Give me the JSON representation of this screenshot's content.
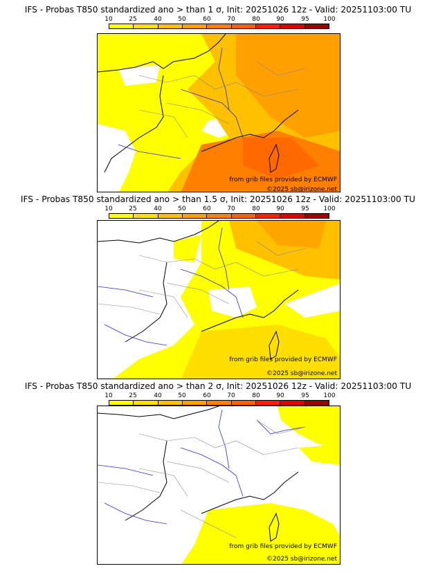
{
  "colors": {
    "scale": [
      "#ffff00",
      "#ffdf00",
      "#ffc000",
      "#ffa000",
      "#ff8000",
      "#ff6000",
      "#ff2000",
      "#e00000",
      "#a00000",
      "#600000"
    ],
    "coast": "#000000",
    "rivers": "#2c2ccc",
    "admin": "#888888"
  },
  "legend": {
    "ticks": [
      "10",
      "25",
      "40",
      "50",
      "60",
      "70",
      "80",
      "90",
      "95",
      "100"
    ]
  },
  "panels": [
    {
      "title": "IFS - Probas T850  standardized ano > than 1 σ, Init: 20251026 12z - Valid: 20251103:00 TU",
      "threshold_sigma": 1,
      "credit_source": "from grib files provided by ECMWF",
      "credit_copyright": "©2025 sb@irizone.net"
    },
    {
      "title": "IFS - Probas T850  standardized ano > than 1.5 σ, Init: 20251026 12z - Valid: 20251103:00 TU",
      "threshold_sigma": 1.5,
      "credit_source": "from grib files provided by ECMWF",
      "credit_copyright": "©2025 sb@irizone.net"
    },
    {
      "title": "IFS - Probas T850  standardized ano > than 2 σ, Init: 20251026 12z - Valid: 20251103:00 TU",
      "threshold_sigma": 2,
      "credit_source": "from grib files provided by ECMWF",
      "credit_copyright": "©2025 sb@irizone.net"
    }
  ]
}
